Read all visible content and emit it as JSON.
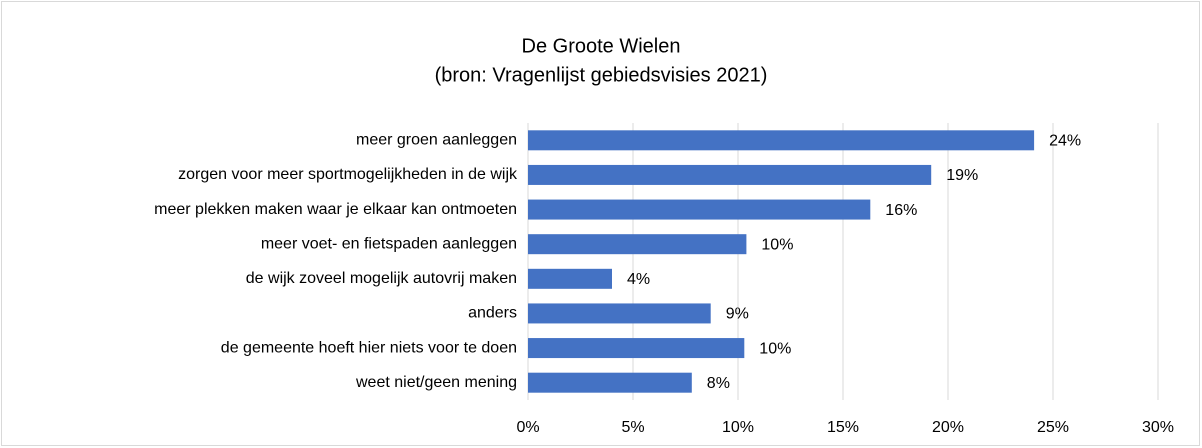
{
  "chart_data": {
    "type": "barh",
    "title": "De Groote Wielen",
    "subtitle": "(bron: Vragenlijst gebiedsvisies 2021)",
    "categories": [
      "meer groen aanleggen",
      "zorgen voor meer sportmogelijkheden in de wijk",
      "meer plekken maken waar je elkaar kan ontmoeten",
      "meer voet- en fietspaden aanleggen",
      "de wijk zoveel mogelijk autovrij maken",
      "anders",
      "de gemeente hoeft hier niets voor te doen",
      "weet niet/geen mening"
    ],
    "values": [
      24.1,
      19.2,
      16.3,
      10.4,
      4,
      8.7,
      10.3,
      7.8
    ],
    "value_labels": [
      "24%",
      "19%",
      "16%",
      "10%",
      "4%",
      "9%",
      "10%",
      "8%"
    ],
    "color": "#4472c4",
    "xlim": [
      0,
      30
    ],
    "xticks": [
      {
        "value": 0,
        "label": "0%"
      },
      {
        "value": 5,
        "label": "5%"
      },
      {
        "value": 10,
        "label": "10%"
      },
      {
        "value": 15,
        "label": "15%"
      },
      {
        "value": 20,
        "label": "20%"
      },
      {
        "value": 25,
        "label": "25%"
      },
      {
        "value": 30,
        "label": "30%"
      }
    ],
    "grid": true
  }
}
